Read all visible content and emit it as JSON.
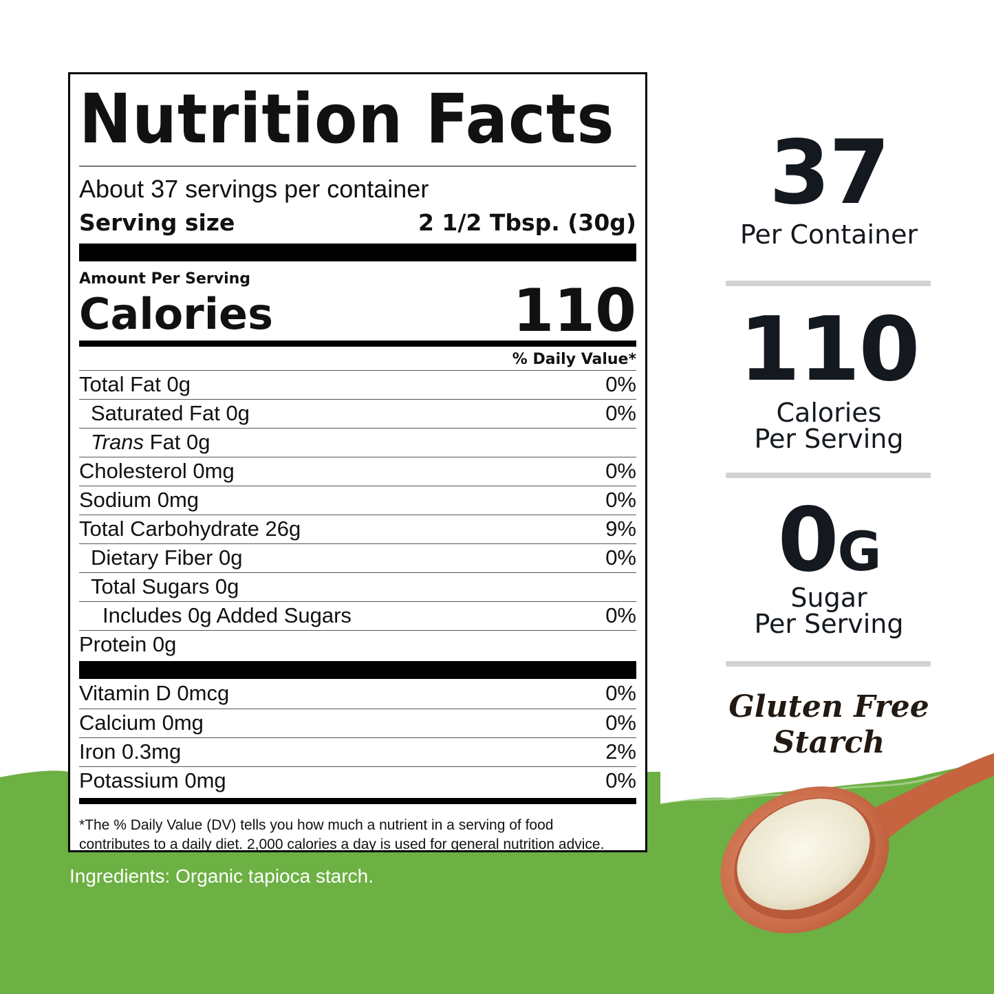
{
  "label": {
    "title": "Nutrition Facts",
    "servings_per_container": "About 37 servings per container",
    "serving_size_label": "Serving size",
    "serving_size_value": "2 1/2 Tbsp. (30g)",
    "amount_per_serving": "Amount Per Serving",
    "calories_label": "Calories",
    "calories_value": "110",
    "daily_value_header": "% Daily Value*",
    "nutrients": [
      {
        "name": "Total Fat  0g",
        "dv": "0%"
      },
      {
        "name": "Saturated Fat  0g",
        "dv": "0%"
      },
      {
        "name_italic": "Trans",
        "name_rest": " Fat  0g",
        "dv": ""
      },
      {
        "name": "Cholesterol  0mg",
        "dv": "0%"
      },
      {
        "name": "Sodium   0mg",
        "dv": "0%"
      },
      {
        "name": "Total Carbohydrate  26g",
        "dv": "9%"
      },
      {
        "name": "Dietary Fiber  0g",
        "dv": "0%"
      },
      {
        "name": "Total Sugars  0g",
        "dv": ""
      },
      {
        "name": "Includes 0g Added Sugars",
        "dv": "0%"
      },
      {
        "name": "Protein 0g",
        "dv": ""
      }
    ],
    "vitamins": [
      {
        "name": "Vitamin D  0mcg",
        "dv": "0%"
      },
      {
        "name": "Calcium  0mg",
        "dv": "0%"
      },
      {
        "name": "Iron  0.3mg",
        "dv": "2%"
      },
      {
        "name": "Potassium 0mg",
        "dv": "0%"
      }
    ],
    "footnote_line1": "*The % Daily Value (DV) tells you how much a nutrient in a serving of food",
    "footnote_line2": "contributes to a daily diet. 2,000 calories a day is used for general nutrition advice."
  },
  "ingredients": "Ingredients: Organic tapioca starch.",
  "stats": [
    {
      "value": "37",
      "label1": "Per Container",
      "label2": ""
    },
    {
      "value": "110",
      "label1": "Calories",
      "label2": "Per Serving"
    },
    {
      "value": "0",
      "unit": "G",
      "label1": "Sugar",
      "label2": "Per Serving"
    }
  ],
  "badge": {
    "line1": "Gluten Free",
    "line2": "Starch"
  },
  "colors": {
    "green": "#6db043",
    "text_dark": "#14191f",
    "divider": "#d2d2d2"
  }
}
